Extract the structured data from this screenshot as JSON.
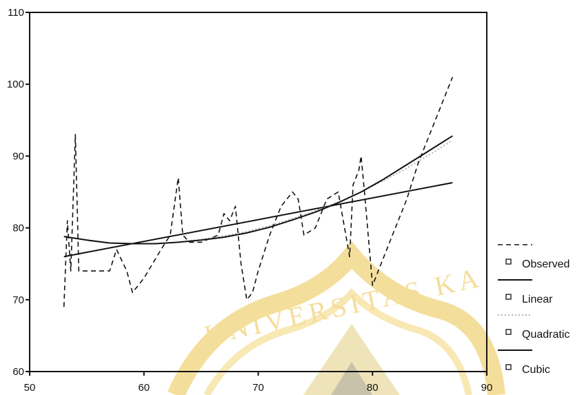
{
  "chart_data": {
    "type": "line",
    "xlim": [
      50,
      90
    ],
    "ylim": [
      60,
      110
    ],
    "x_ticks": [
      50,
      60,
      70,
      80,
      90
    ],
    "y_ticks": [
      60,
      70,
      80,
      90,
      100,
      110
    ],
    "grid": false,
    "legend_position": "right",
    "series": [
      {
        "name": "Observed",
        "style": "dashed",
        "color": "#111111",
        "x": [
          53,
          53.3,
          53.6,
          54,
          54.3,
          54.6,
          57,
          57.6,
          58.5,
          59,
          60,
          61.5,
          62.3,
          63,
          63.4,
          64,
          65,
          66.5,
          67,
          67.5,
          68,
          68.5,
          69,
          69.5,
          70,
          71,
          72,
          73,
          73.5,
          74,
          75,
          76,
          77,
          78,
          78.3,
          78.8,
          79,
          79.3,
          80,
          81,
          82,
          83,
          84,
          85,
          86,
          87
        ],
        "y": [
          69,
          81,
          74,
          93,
          74,
          74,
          74,
          77,
          74,
          71,
          73,
          77,
          79,
          87,
          79,
          78,
          78,
          79,
          82,
          81,
          83,
          75,
          70,
          71,
          74,
          79,
          83,
          85,
          84,
          79,
          80,
          84,
          85,
          76,
          86,
          88,
          90,
          85,
          72,
          76,
          80,
          84,
          89,
          93,
          97,
          101
        ]
      },
      {
        "name": "Linear",
        "style": "solid",
        "color": "#111111",
        "x": [
          53,
          87
        ],
        "y": [
          76,
          86.3
        ]
      },
      {
        "name": "Quadratic",
        "style": "dotted",
        "color": "#999999",
        "x": [
          53,
          55,
          57,
          59,
          61,
          63,
          65,
          67,
          69,
          71,
          73,
          75,
          77,
          79,
          81,
          83,
          85,
          87
        ],
        "y": [
          78.8,
          78.3,
          77.9,
          77.8,
          77.8,
          78.0,
          78.4,
          78.9,
          79.5,
          80.3,
          81.3,
          82.4,
          83.6,
          85.0,
          86.6,
          88.3,
          90.2,
          92.2
        ]
      },
      {
        "name": "Cubic",
        "style": "solid",
        "color": "#111111",
        "x": [
          53,
          55,
          57,
          59,
          61,
          63,
          65,
          67,
          69,
          71,
          73,
          75,
          77,
          79,
          81,
          83,
          85,
          87
        ],
        "y": [
          78.8,
          78.3,
          77.9,
          77.8,
          77.8,
          78.0,
          78.3,
          78.7,
          79.3,
          80.1,
          81.1,
          82.2,
          83.5,
          85.0,
          86.8,
          88.8,
          90.8,
          92.8
        ]
      }
    ]
  },
  "watermark": {
    "text": "UNIVERSITAS KA",
    "color": "#f3d98a"
  }
}
